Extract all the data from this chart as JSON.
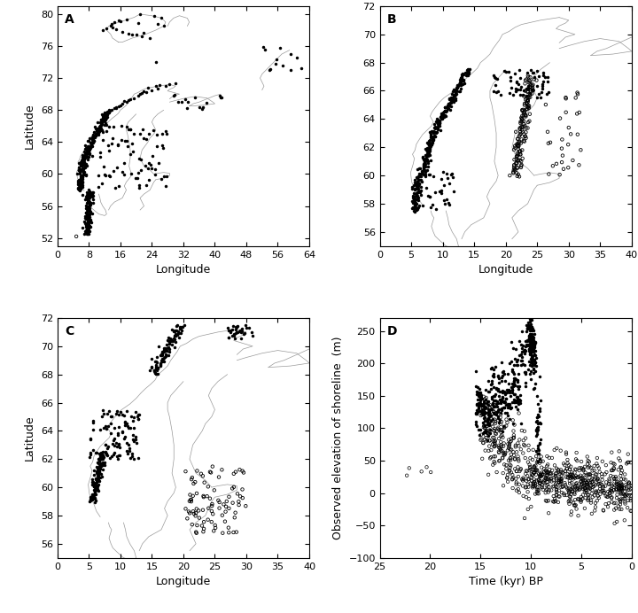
{
  "panels": [
    "A",
    "B",
    "C",
    "D"
  ],
  "panel_A": {
    "xlim": [
      0,
      64
    ],
    "ylim": [
      51,
      81
    ],
    "xticks": [
      0,
      8,
      16,
      24,
      32,
      40,
      48,
      56,
      64
    ],
    "yticks": [
      52,
      56,
      60,
      64,
      68,
      72,
      76,
      80
    ],
    "xlabel": "Longitude",
    "ylabel": "Latitude",
    "label": "A"
  },
  "panel_B": {
    "xlim": [
      0,
      40
    ],
    "ylim": [
      55,
      72
    ],
    "xticks": [
      0,
      5,
      10,
      15,
      20,
      25,
      30,
      35,
      40
    ],
    "yticks": [
      56,
      58,
      60,
      62,
      64,
      66,
      68,
      70,
      72
    ],
    "xlabel": "Longitude",
    "ylabel": "",
    "label": "B"
  },
  "panel_C": {
    "xlim": [
      0,
      40
    ],
    "ylim": [
      55,
      72
    ],
    "xticks": [
      0,
      5,
      10,
      15,
      20,
      25,
      30,
      35,
      40
    ],
    "yticks": [
      56,
      58,
      60,
      62,
      64,
      66,
      68,
      70,
      72
    ],
    "xlabel": "Longitude",
    "ylabel": "Latitude",
    "label": "C"
  },
  "panel_D": {
    "xlim": [
      25,
      0
    ],
    "ylim": [
      -100,
      270
    ],
    "xticks": [
      25,
      20,
      15,
      10,
      5,
      0
    ],
    "yticks": [
      -100,
      -50,
      0,
      50,
      100,
      150,
      200,
      250
    ],
    "xlabel": "Time (kyr) BP",
    "ylabel": "Observed elevation of shoreline  (m)",
    "label": "D"
  },
  "dot_color": "#000000",
  "line_color": "#999999",
  "bg_color": "#ffffff",
  "marker_size_filled": 2.5,
  "marker_size_open": 2.5,
  "font_size_label": 9,
  "font_size_tick": 8,
  "font_size_panel": 10,
  "lw_coast": 0.5
}
